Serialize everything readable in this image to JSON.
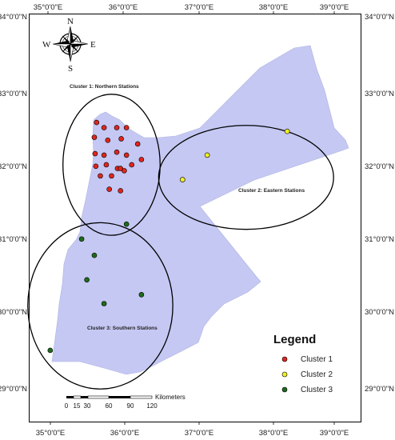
{
  "map": {
    "lon_labels": [
      "35°0'0\"E",
      "36°0'0\"E",
      "37°0'0\"E",
      "38°0'0\"E",
      "39°0'0\"E"
    ],
    "lat_labels": [
      "34°0'0\"N",
      "33°0'0\"N",
      "32°0'0\"N",
      "31°0'0\"N",
      "30°0'0\"N",
      "29°0'0\"N"
    ],
    "country_fill": "#c5c8f3",
    "compass": {
      "n": "N",
      "s": "S",
      "e": "E",
      "w": "W"
    },
    "clusters": [
      {
        "id": "cluster-1",
        "label": "Cluster 1: Northern Stations",
        "color": "#e0261e",
        "stations": [
          [
            35.65,
            32.62
          ],
          [
            35.75,
            32.55
          ],
          [
            35.92,
            32.55
          ],
          [
            36.05,
            32.55
          ],
          [
            35.62,
            32.42
          ],
          [
            35.8,
            32.38
          ],
          [
            35.98,
            32.4
          ],
          [
            36.2,
            32.33
          ],
          [
            35.63,
            32.2
          ],
          [
            35.75,
            32.18
          ],
          [
            35.92,
            32.22
          ],
          [
            36.05,
            32.18
          ],
          [
            35.64,
            32.03
          ],
          [
            35.78,
            32.05
          ],
          [
            35.93,
            32.0
          ],
          [
            35.97,
            32.0
          ],
          [
            36.12,
            32.05
          ],
          [
            36.25,
            32.12
          ],
          [
            35.7,
            31.9
          ],
          [
            35.85,
            31.9
          ],
          [
            36.02,
            31.97
          ],
          [
            35.82,
            31.72
          ],
          [
            35.97,
            31.7
          ]
        ]
      },
      {
        "id": "cluster-2",
        "label": "Cluster 2: Eastern Stations",
        "color": "#f1ee2a",
        "stations": [
          [
            38.2,
            32.5
          ],
          [
            37.13,
            32.18
          ],
          [
            36.8,
            31.85
          ]
        ]
      },
      {
        "id": "cluster-3",
        "label": "Cluster 3: Southern Stations",
        "color": "#1f6b1c",
        "stations": [
          [
            36.05,
            31.25
          ],
          [
            35.45,
            31.05
          ],
          [
            35.62,
            30.83
          ],
          [
            35.52,
            30.5
          ],
          [
            36.25,
            30.3
          ],
          [
            35.75,
            30.18
          ],
          [
            35.03,
            29.55
          ]
        ]
      }
    ],
    "cluster_ellipses": [
      {
        "cx": 35.85,
        "cy": 32.05,
        "rx": 0.65,
        "ry": 0.95
      },
      {
        "cx": 37.65,
        "cy": 31.88,
        "rx": 1.17,
        "ry": 0.7
      },
      {
        "cx": 35.7,
        "cy": 30.15,
        "rx": 0.97,
        "ry": 1.12
      }
    ],
    "legend": {
      "title": "Legend",
      "items": [
        "Cluster 1",
        "Cluster 2",
        "Cluster 3"
      ]
    },
    "scale_bar": {
      "unit": "Kilometers",
      "ticks": [
        "0",
        "15",
        "30",
        "60",
        "90",
        "120"
      ]
    }
  }
}
